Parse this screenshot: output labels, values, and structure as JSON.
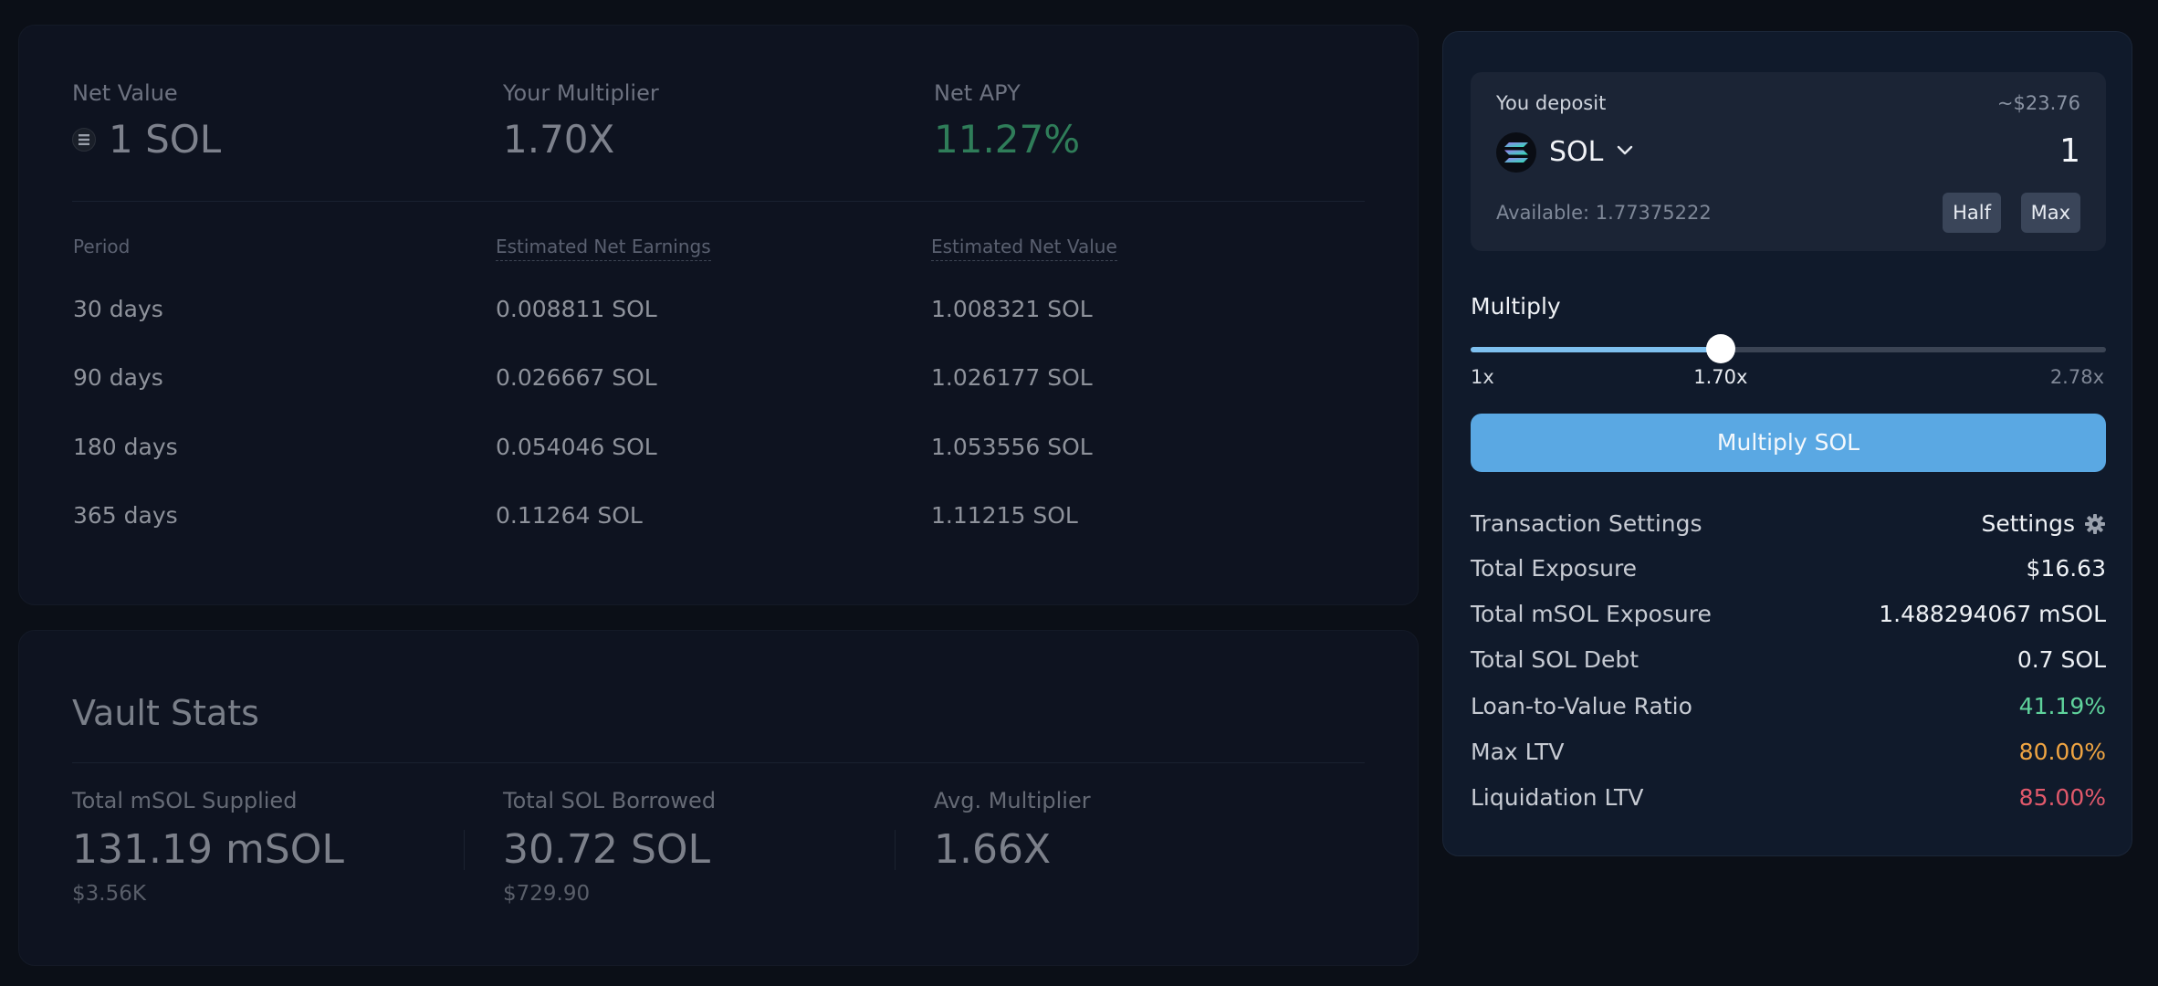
{
  "summary": {
    "net_value_label": "Net Value",
    "net_value": "1 SOL",
    "multiplier_label": "Your Multiplier",
    "multiplier": "1.70X",
    "net_apy_label": "Net APY",
    "net_apy": "11.27%"
  },
  "earnings_table": {
    "headers": [
      "Period",
      "Estimated Net Earnings",
      "Estimated Net Value"
    ],
    "rows": [
      [
        "30 days",
        "0.008811 SOL",
        "1.008321 SOL"
      ],
      [
        "90 days",
        "0.026667 SOL",
        "1.026177 SOL"
      ],
      [
        "180 days",
        "0.054046 SOL",
        "1.053556 SOL"
      ],
      [
        "365 days",
        "0.11264 SOL",
        "1.11215 SOL"
      ]
    ]
  },
  "vault": {
    "title": "Vault Stats",
    "stats": [
      {
        "label": "Total mSOL Supplied",
        "value": "131.19 mSOL",
        "sub": "$3.56K"
      },
      {
        "label": "Total SOL Borrowed",
        "value": "30.72 SOL",
        "sub": "$729.90"
      },
      {
        "label": "Avg. Multiplier",
        "value": "1.66X",
        "sub": ""
      }
    ]
  },
  "deposit": {
    "label": "You deposit",
    "usd_value": "~$23.76",
    "token": "SOL",
    "amount": "1",
    "available": "Available: 1.77375222",
    "half_label": "Half",
    "max_label": "Max"
  },
  "multiply": {
    "label": "Multiply",
    "min_label": "1x",
    "current_label": "1.70x",
    "max_label": "2.78x",
    "min": 1,
    "max": 2.78,
    "value": 1.7
  },
  "action_button": "Multiply SOL",
  "details": {
    "tx_settings_label": "Transaction Settings",
    "settings_link": "Settings",
    "rows": [
      {
        "label": "Total Exposure",
        "value": "$16.63",
        "tone": "normal"
      },
      {
        "label": "Total mSOL Exposure",
        "value": "1.488294067 mSOL",
        "tone": "normal"
      },
      {
        "label": "Total SOL Debt",
        "value": "0.7 SOL",
        "tone": "normal"
      },
      {
        "label": "Loan-to-Value Ratio",
        "value": "41.19%",
        "tone": "green"
      },
      {
        "label": "Max LTV",
        "value": "80.00%",
        "tone": "orange"
      },
      {
        "label": "Liquidation LTV",
        "value": "85.00%",
        "tone": "red"
      }
    ]
  },
  "colors": {
    "accent_button": "#5aa8e3",
    "apy_green": "#2f7d59",
    "ltv_green": "#5fd39c",
    "max_ltv_orange": "#f0a542",
    "liquidation_red": "#e1596b"
  }
}
